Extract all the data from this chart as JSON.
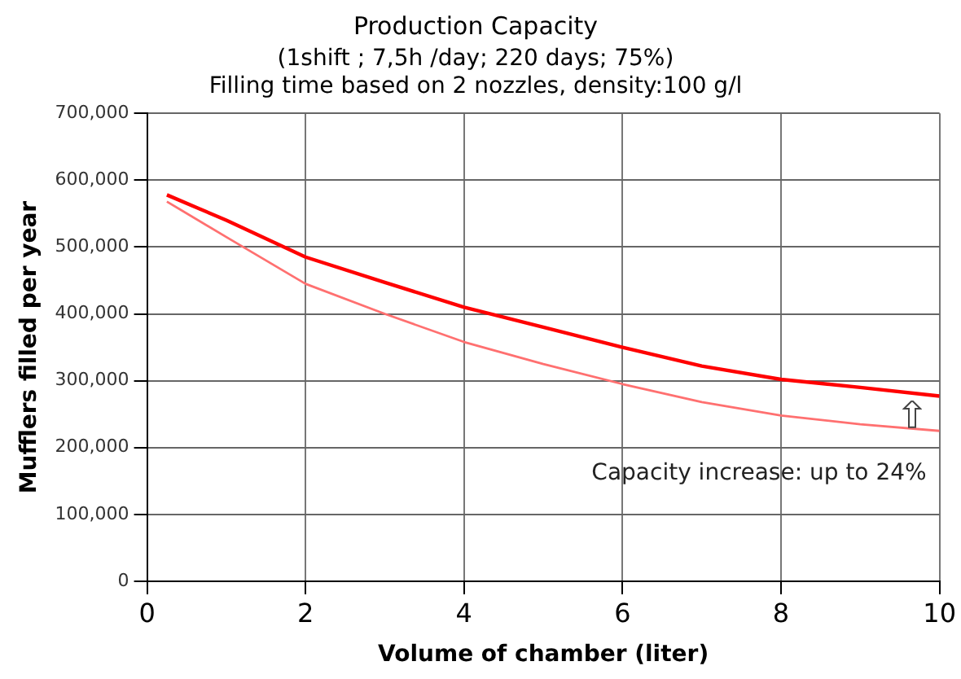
{
  "chart_data": {
    "type": "line",
    "title": "Production Capacity",
    "subtitle": "(1shift ; 7,5h /day; 220 days; 75%)\nFilling time based on 2 nozzles, density:100 g/l",
    "xlabel": "Volume of chamber (liter)",
    "ylabel": "Mufflers filled per year",
    "annotations": [
      "Capacity increase: up to 24%"
    ],
    "x": [
      0.25,
      1,
      2,
      3,
      4,
      5,
      6,
      7,
      8,
      9,
      10
    ],
    "series": [
      {
        "color": "#ff0000",
        "values": [
          578000,
          540000,
          485000,
          447000,
          410000,
          380000,
          350000,
          322000,
          302000,
          290000,
          277000
        ]
      },
      {
        "color": "#ff7070",
        "values": [
          568000,
          515000,
          445000,
          400000,
          358000,
          325000,
          295000,
          268000,
          248000,
          235000,
          225000
        ]
      }
    ],
    "xlim": [
      0,
      10
    ],
    "xticks": [
      0,
      2,
      4,
      6,
      8,
      10
    ],
    "ylim": [
      0,
      700000
    ],
    "yticks": [
      {
        "value": 0,
        "label": "0"
      },
      {
        "value": 100000,
        "label": "100,000"
      },
      {
        "value": 200000,
        "label": "200,000"
      },
      {
        "value": 300000,
        "label": "300,000"
      },
      {
        "value": 400000,
        "label": "400,000"
      },
      {
        "value": 500000,
        "label": "500,000"
      },
      {
        "value": 600000,
        "label": "600,000"
      },
      {
        "value": 700000,
        "label": "700,000"
      }
    ],
    "grid": true,
    "legend": false,
    "marker": "none",
    "line_style": "solid"
  }
}
